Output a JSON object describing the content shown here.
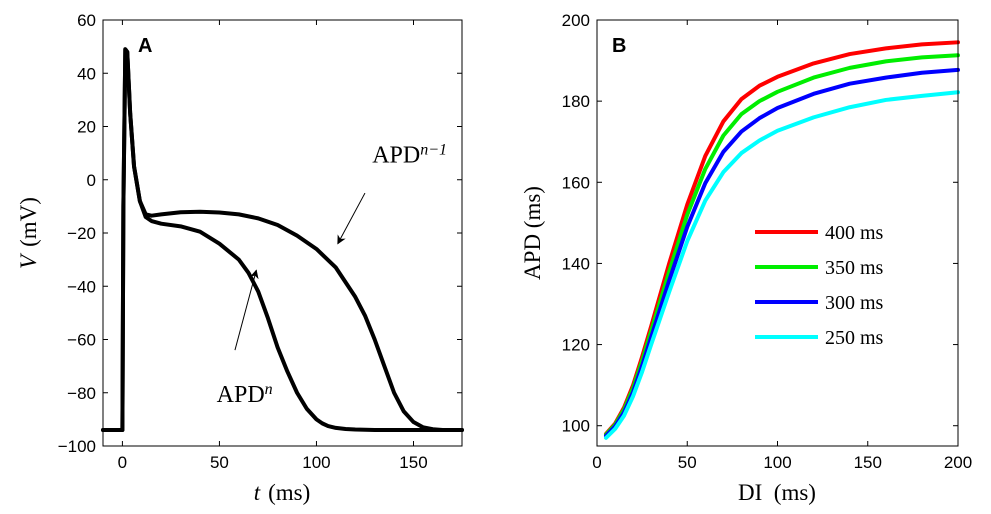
{
  "chart_data": [
    {
      "panel": "A",
      "type": "line",
      "xlabel_var": "t",
      "xlabel_unit": "(ms)",
      "ylabel_var": "V",
      "ylabel_unit": "(mV)",
      "xlim": [
        -10,
        175
      ],
      "ylim": [
        -100,
        60
      ],
      "xticks": [
        0,
        50,
        100,
        150
      ],
      "yticks": [
        -100,
        -80,
        -60,
        -40,
        -20,
        0,
        20,
        40,
        60
      ],
      "ytick_labels": [
        "−100",
        "−80",
        "−60",
        "−40",
        "−20",
        "0",
        "20",
        "40",
        "60"
      ],
      "series": [
        {
          "color": "#000000",
          "x": [
            -10,
            -1,
            0,
            0.5,
            1.5,
            2.5,
            4,
            6,
            9,
            12,
            15,
            20,
            30,
            40,
            50,
            60,
            65,
            70,
            75,
            80,
            85,
            90,
            95,
            100,
            103,
            106,
            110,
            115,
            120,
            130,
            150,
            175
          ],
          "y": [
            -94,
            -94,
            -94,
            -10,
            49,
            48,
            25,
            5,
            -8,
            -14,
            -15.5,
            -16.5,
            -17.5,
            -19.5,
            -24,
            -30,
            -35,
            -42,
            -52,
            -63,
            -72,
            -80,
            -86,
            -90,
            -91.5,
            -92.5,
            -93.2,
            -93.6,
            -93.8,
            -94,
            -94,
            -94
          ]
        },
        {
          "color": "#000000",
          "x": [
            -10,
            -1,
            0,
            0.5,
            1.5,
            2.5,
            4,
            6,
            9,
            12,
            15,
            20,
            30,
            40,
            50,
            60,
            70,
            80,
            90,
            100,
            110,
            120,
            125,
            130,
            135,
            140,
            145,
            150,
            155,
            160,
            165,
            175
          ],
          "y": [
            -94,
            -94,
            -94,
            -10,
            49,
            48,
            25,
            5,
            -8,
            -13,
            -13.5,
            -13,
            -12.2,
            -12,
            -12.3,
            -13,
            -14.5,
            -17,
            -21,
            -26,
            -33,
            -44,
            -51,
            -60,
            -70,
            -80,
            -87,
            -91,
            -93,
            -93.7,
            -94,
            -94
          ]
        }
      ],
      "annotations": [
        {
          "label_base": "APD",
          "label_sup": "n−1",
          "text_x": 148,
          "text_y": 6.5,
          "arrow_from": [
            125,
            -5
          ],
          "arrow_to": [
            111,
            -24
          ]
        },
        {
          "label_base": "APD",
          "label_sup": "n",
          "text_x": 63,
          "text_y": -83.5,
          "arrow_from": [
            58,
            -64
          ],
          "arrow_to": [
            69,
            -34
          ]
        }
      ]
    },
    {
      "panel": "B",
      "type": "line",
      "xlabel": "DI  (ms)",
      "ylabel": "APD (ms)",
      "xlim": [
        0,
        200
      ],
      "ylim": [
        95,
        200
      ],
      "xticks": [
        0,
        50,
        100,
        150,
        200
      ],
      "yticks": [
        100,
        120,
        140,
        160,
        180,
        200
      ],
      "legend_position": "inside-right",
      "series": [
        {
          "name": "400 ms",
          "color": "#ff0000",
          "x": [
            5,
            10,
            15,
            20,
            25,
            30,
            40,
            50,
            60,
            70,
            80,
            90,
            100,
            120,
            140,
            160,
            180,
            200
          ],
          "y": [
            98,
            100.5,
            104.5,
            110,
            117,
            124.5,
            140,
            154.5,
            166.5,
            175,
            180.5,
            183.8,
            186,
            189.3,
            191.6,
            193,
            194,
            194.5
          ]
        },
        {
          "name": "350 ms",
          "color": "#00ee00",
          "x": [
            5,
            10,
            15,
            20,
            25,
            30,
            40,
            50,
            60,
            70,
            80,
            90,
            100,
            120,
            140,
            160,
            180,
            200
          ],
          "y": [
            97.8,
            100.2,
            104,
            109.3,
            116,
            123.3,
            138,
            152,
            163.3,
            171.5,
            176.8,
            180,
            182.3,
            185.8,
            188.2,
            189.8,
            190.8,
            191.3
          ]
        },
        {
          "name": "300 ms",
          "color": "#0000ff",
          "x": [
            5,
            10,
            15,
            20,
            25,
            30,
            40,
            50,
            60,
            70,
            80,
            90,
            100,
            120,
            140,
            160,
            180,
            200
          ],
          "y": [
            97.5,
            99.8,
            103.3,
            108.3,
            114.8,
            121.8,
            135.8,
            149,
            159.8,
            167.5,
            172.5,
            175.8,
            178.3,
            181.8,
            184.3,
            185.8,
            187,
            187.7
          ]
        },
        {
          "name": "250 ms",
          "color": "#00ffff",
          "x": [
            5,
            10,
            15,
            20,
            25,
            30,
            40,
            50,
            60,
            70,
            80,
            90,
            100,
            120,
            140,
            160,
            180,
            200
          ],
          "y": [
            97,
            99.2,
            102.5,
            107.3,
            113.3,
            120,
            133,
            145.5,
            155.5,
            162.5,
            167.2,
            170.3,
            172.7,
            176,
            178.5,
            180.3,
            181.3,
            182.2
          ]
        }
      ]
    }
  ]
}
